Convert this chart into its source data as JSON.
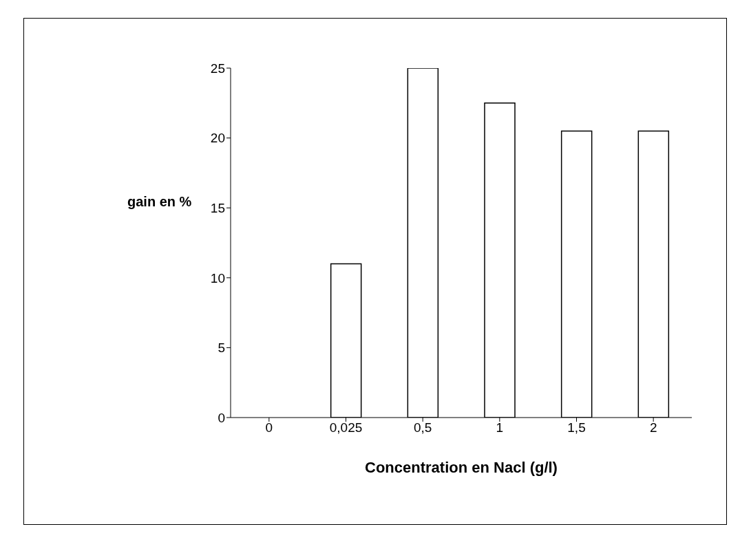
{
  "chart_data": {
    "type": "bar",
    "xlabel": "Concentration en Nacl (g/l)",
    "ylabel": "gain en %",
    "categories": [
      "0",
      "0,025",
      "0,5",
      "1",
      "1,5",
      "2"
    ],
    "values": [
      0,
      11,
      25,
      22.5,
      20.5,
      20.5
    ],
    "color": "#ffffff",
    "ylim": [
      0,
      25
    ],
    "yticks": [
      0,
      5,
      10,
      15,
      20,
      25
    ],
    "grid": false,
    "legend": false
  }
}
